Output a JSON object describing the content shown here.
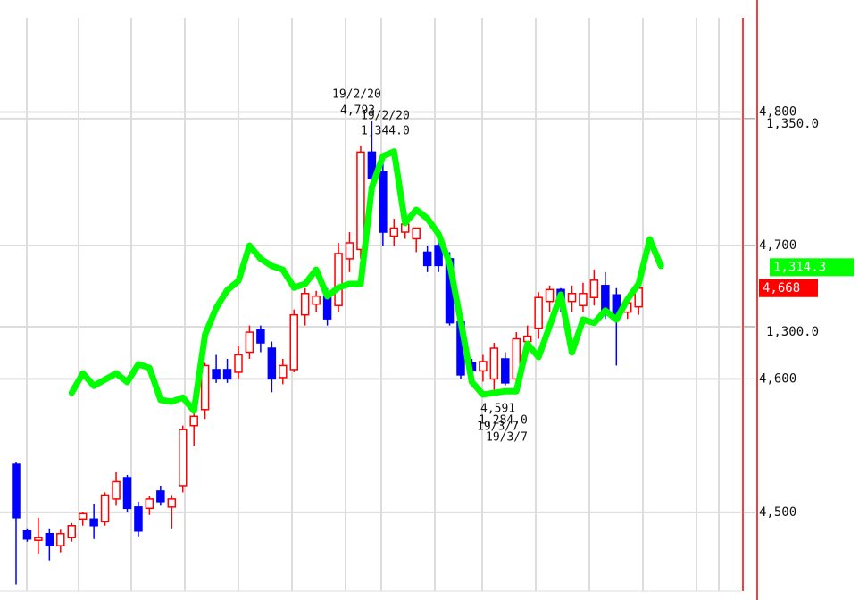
{
  "chart_data": {
    "type": "candlestick",
    "categories": [
      null,
      null,
      null,
      null,
      null,
      null,
      null,
      null,
      null,
      null,
      null,
      null,
      null,
      null,
      null,
      null,
      null,
      null,
      null,
      null,
      null,
      null,
      null,
      null,
      null,
      null,
      null,
      null,
      null,
      null,
      null,
      null,
      null,
      null,
      null,
      null,
      null,
      null,
      null,
      null,
      null,
      null,
      null,
      null,
      null,
      null,
      null,
      null,
      null,
      null,
      null,
      null,
      null,
      null,
      null,
      null,
      null,
      null,
      null
    ],
    "open": [
      4536,
      4486,
      4479,
      4484,
      4475,
      4481,
      4495,
      4495,
      4493,
      4510,
      4526,
      4504,
      4503,
      4516,
      4504,
      4520,
      4565,
      4577,
      4607,
      4607,
      4605,
      4620,
      4637,
      4623,
      4601,
      4607,
      4648,
      4656,
      4662,
      4655,
      4690,
      4697,
      4770,
      4755,
      4707,
      4710,
      4705,
      4695,
      4700,
      4690,
      4643,
      4612,
      4606,
      4600,
      4615,
      4600,
      4628,
      4638,
      4658,
      4667,
      4658,
      4655,
      4661,
      4670,
      4663,
      4650,
      4654,
      null,
      null
    ],
    "high": [
      4538,
      4488,
      4496,
      4488,
      4487,
      4492,
      4500,
      4506,
      4515,
      4530,
      4528,
      4508,
      4512,
      4520,
      4513,
      4565,
      4575,
      4612,
      4618,
      4615,
      4625,
      4640,
      4640,
      4628,
      4615,
      4652,
      4668,
      4666,
      4668,
      4702,
      4710,
      4775,
      4793,
      4762,
      4720,
      4720,
      4712,
      4700,
      4705,
      4695,
      4645,
      4615,
      4618,
      4627,
      4620,
      4635,
      4640,
      4665,
      4670,
      4668,
      4670,
      4672,
      4682,
      4680,
      4668,
      4662,
      4672,
      null,
      null
    ],
    "low": [
      4446,
      4478,
      4469,
      4464,
      4470,
      4478,
      4490,
      4480,
      4490,
      4505,
      4500,
      4482,
      4498,
      4505,
      4488,
      4515,
      4550,
      4570,
      4597,
      4597,
      4600,
      4615,
      4620,
      4590,
      4596,
      4605,
      4640,
      4650,
      4640,
      4650,
      4680,
      4690,
      4745,
      4700,
      4700,
      4705,
      4695,
      4680,
      4680,
      4640,
      4600,
      4600,
      4598,
      4591,
      4595,
      4596,
      4620,
      4630,
      4650,
      4650,
      4650,
      4650,
      4655,
      4645,
      4610,
      4645,
      4648,
      null,
      null
    ],
    "close": [
      4496,
      4480,
      4481,
      4475,
      4484,
      4490,
      4499,
      4490,
      4513,
      4523,
      4503,
      4486,
      4510,
      4508,
      4510,
      4562,
      4572,
      4610,
      4600,
      4600,
      4618,
      4635,
      4627,
      4600,
      4610,
      4648,
      4664,
      4662,
      4645,
      4694,
      4702,
      4770,
      4750,
      4710,
      4713,
      4716,
      4713,
      4685,
      4685,
      4642,
      4603,
      4606,
      4613,
      4623,
      4597,
      4630,
      4632,
      4661,
      4667,
      4660,
      4664,
      4664,
      4674,
      4650,
      4647,
      4657,
      4668,
      null,
      null
    ],
    "up_color": "#ff0000",
    "down_color": "#0000ff",
    "series": [
      {
        "color": "#00ff00",
        "axis": "y2",
        "values": [
          null,
          null,
          null,
          null,
          null,
          1284.1,
          1288.8,
          1285.8,
          1287.3,
          1288.8,
          1286.7,
          1291.0,
          1290.1,
          1282.4,
          1282.0,
          1283.0,
          1279.8,
          1298.1,
          1304.5,
          1308.8,
          1311.0,
          1319.5,
          1316.3,
          1314.6,
          1313.7,
          1309.4,
          1310.3,
          1313.7,
          1307.3,
          1309.4,
          1310.3,
          1310.3,
          1333.5,
          1341.0,
          1342.1,
          1324.9,
          1328.1,
          1326.0,
          1322.3,
          1315.2,
          1301.3,
          1286.7,
          1283.7,
          1284.1,
          1284.5,
          1284.5,
          1295.9,
          1292.7,
          1300.2,
          1307.7,
          1293.8,
          1301.7,
          1300.9,
          1303.9,
          1301.7,
          1306.6,
          1310.3,
          1321.0,
          1314.6
        ]
      }
    ],
    "ylim": [
      4441,
      4884
    ],
    "yticks": [
      {
        "value": 4500,
        "label": "4,500"
      },
      {
        "value": 4600,
        "label": "4,600"
      },
      {
        "value": 4700,
        "label": "4,700"
      },
      {
        "value": 4800,
        "label": "4,800"
      }
    ],
    "y2lim": [
      1236.5,
      1378.5
    ],
    "y2ticks": [
      {
        "value": 1300,
        "label": "1,300.0"
      },
      {
        "value": 1350,
        "label": "1,350.0"
      }
    ],
    "grid": true,
    "markers": [
      {
        "value": 1314.3,
        "label": "1,314.3",
        "axis": "y2",
        "color": "#00ff00"
      },
      {
        "value": 4668,
        "label": "4,668",
        "color": "#ff0000"
      }
    ],
    "annotations": [
      "19/2/20",
      "4,793",
      "19/2/20",
      "1,344.0",
      "4,591",
      "1,284.0",
      "19/3/7",
      "19/3/7"
    ]
  }
}
